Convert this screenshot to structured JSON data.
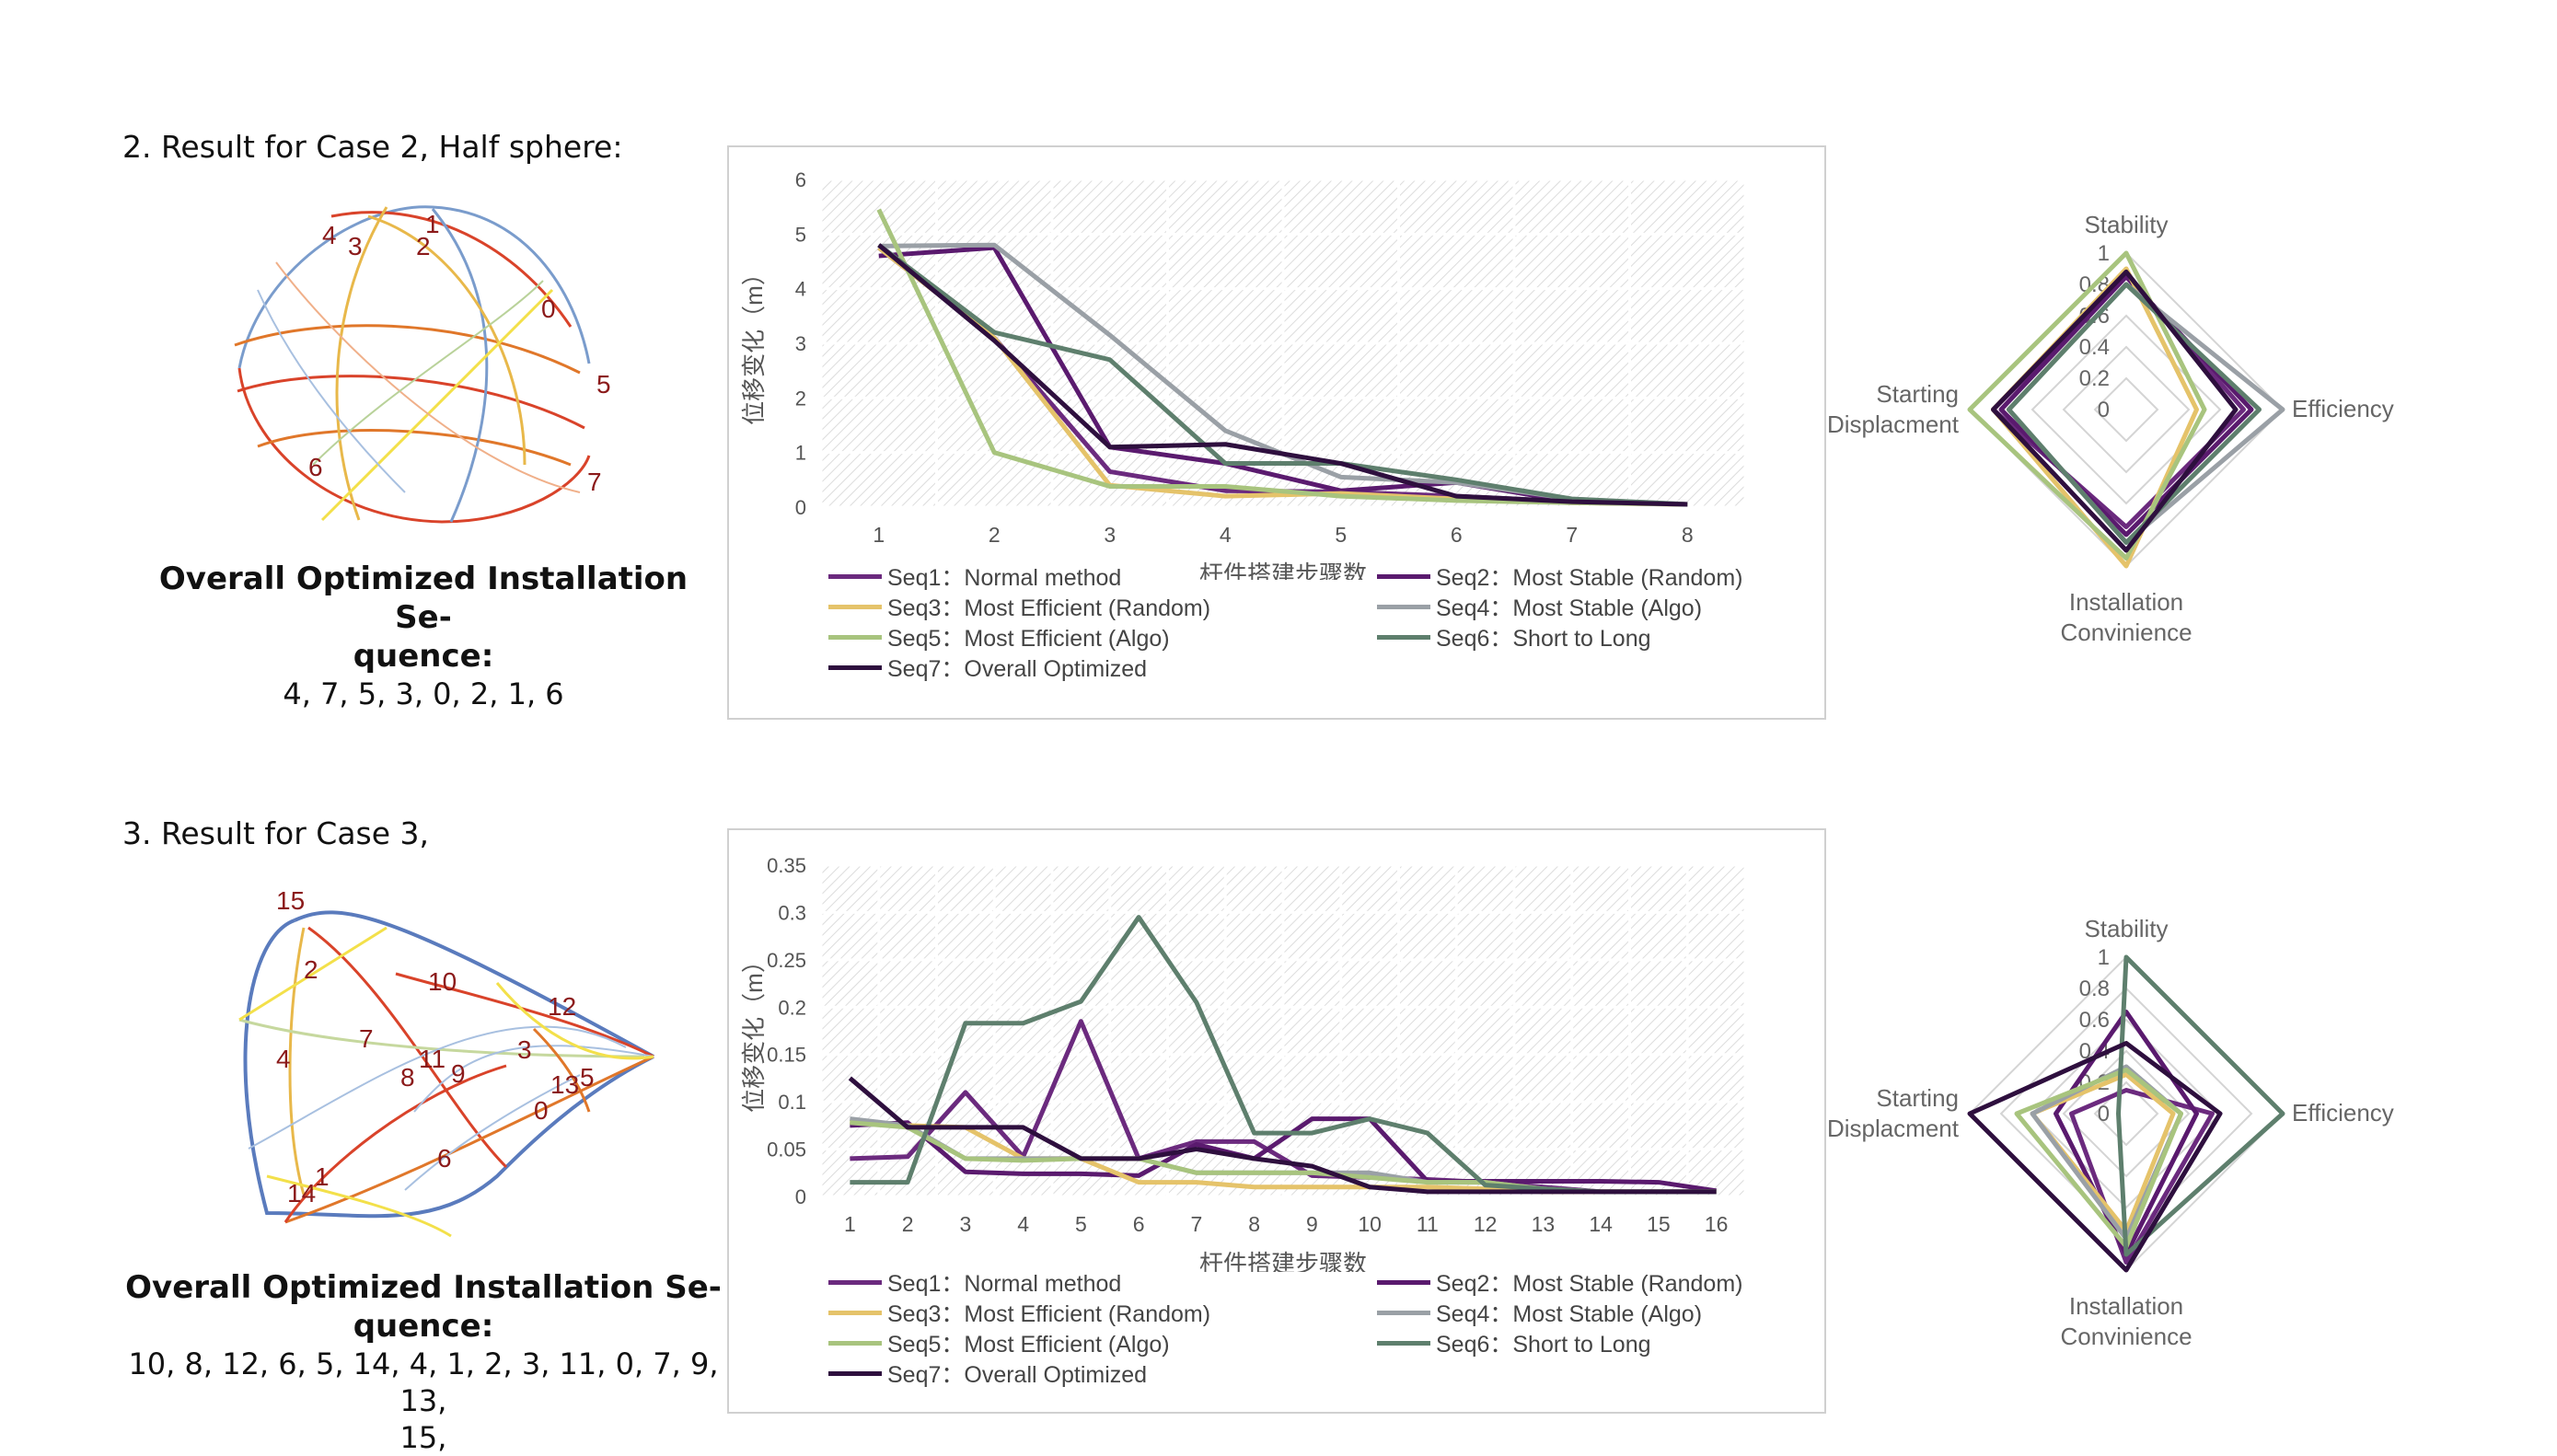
{
  "sections": [
    {
      "title": "2. Result for Case 2,  Half sphere:",
      "sequence_heading": "Overall Optimized Installation Se-\nquence:",
      "sequence_values": "4, 7, 5, 3, 0, 2, 1, 6",
      "model_labels": [
        "1",
        "4",
        "3",
        "2",
        "0",
        "5",
        "6",
        "7"
      ]
    },
    {
      "title": "3. Result for Case 3,",
      "sequence_heading": "Overall Optimized Installation Se-\nquence:",
      "sequence_values": "10, 8, 12, 6, 5, 14, 4, 1, 2, 3, 11, 0, 7, 9, 13,\n15,",
      "model_labels": [
        "15",
        "2",
        "10",
        "12",
        "7",
        "4",
        "11",
        "8",
        "9",
        "3",
        "13",
        "5",
        "0",
        "6",
        "14",
        "1"
      ]
    }
  ],
  "colors": {
    "Seq1": "#6b2a7e",
    "Seq2": "#5a1a6e",
    "Seq3": "#e5c36a",
    "Seq4": "#9aa0a6",
    "Seq5": "#a8c47e",
    "Seq6": "#5e7f6d",
    "Seq7": "#2e0f3e"
  },
  "chart_data": [
    {
      "type": "line",
      "xlabel": "杆件搭建步骤数",
      "ylabel": "位移变化（m）",
      "x": [
        1,
        2,
        3,
        4,
        5,
        6,
        7,
        8
      ],
      "ylim": [
        0,
        6
      ],
      "yticks": [
        "0",
        "1",
        "2",
        "3",
        "4",
        "5",
        "6"
      ],
      "grid": true,
      "legend_position": "bottom",
      "series": [
        {
          "name": "Seq1：Normal method",
          "key": "Seq1",
          "values": [
            4.75,
            3.1,
            0.65,
            0.3,
            0.28,
            0.2,
            0.1,
            0.05
          ]
        },
        {
          "name": "Seq2：Most Stable (Random)",
          "key": "Seq2",
          "values": [
            4.6,
            4.75,
            1.1,
            0.8,
            0.3,
            0.45,
            0.1,
            0.05
          ]
        },
        {
          "name": "Seq3：Most Efficient (Random)",
          "key": "Seq3",
          "values": [
            4.75,
            3.1,
            0.4,
            0.2,
            0.25,
            0.15,
            0.08,
            0.05
          ]
        },
        {
          "name": "Seq4：Most Stable (Algo)",
          "key": "Seq4",
          "values": [
            4.78,
            4.8,
            3.15,
            1.4,
            0.55,
            0.45,
            0.15,
            0.05
          ]
        },
        {
          "name": "Seq5：Most Efficient (Algo)",
          "key": "Seq5",
          "values": [
            5.45,
            1.0,
            0.38,
            0.38,
            0.2,
            0.12,
            0.08,
            0.05
          ]
        },
        {
          "name": "Seq6：Short to Long",
          "key": "Seq6",
          "values": [
            4.8,
            3.2,
            2.7,
            0.8,
            0.8,
            0.5,
            0.15,
            0.05
          ]
        },
        {
          "name": "Seq7：Overall Optimized",
          "key": "Seq7",
          "values": [
            4.8,
            3.05,
            1.1,
            1.15,
            0.8,
            0.2,
            0.1,
            0.05
          ]
        }
      ]
    },
    {
      "type": "line",
      "xlabel": "杆件搭建步骤数",
      "ylabel": "位移变化（m）",
      "x": [
        1,
        2,
        3,
        4,
        5,
        6,
        7,
        8,
        9,
        10,
        11,
        12,
        13,
        14,
        15,
        16
      ],
      "ylim": [
        0,
        0.35
      ],
      "yticks": [
        "0",
        "0.05",
        "0.1",
        "0.15",
        "0.2",
        "0.25",
        "0.3",
        "0.35"
      ],
      "grid": true,
      "legend_position": "bottom",
      "series": [
        {
          "name": "Seq1：Normal method",
          "key": "Seq1",
          "values": [
            0.04,
            0.042,
            0.11,
            0.042,
            0.185,
            0.04,
            0.058,
            0.058,
            0.022,
            0.02,
            0.018,
            0.015,
            0.01,
            0.005,
            0.005,
            0.005
          ]
        },
        {
          "name": "Seq2：Most Stable (Random)",
          "key": "Seq2",
          "values": [
            0.075,
            0.078,
            0.026,
            0.024,
            0.024,
            0.022,
            0.055,
            0.04,
            0.082,
            0.082,
            0.016,
            0.016,
            0.016,
            0.016,
            0.015,
            0.006
          ]
        },
        {
          "name": "Seq3：Most Efficient (Random)",
          "key": "Seq3",
          "values": [
            0.08,
            0.075,
            0.073,
            0.04,
            0.04,
            0.015,
            0.015,
            0.01,
            0.01,
            0.01,
            0.01,
            0.008,
            0.005,
            0.005,
            0.005,
            0.005
          ]
        },
        {
          "name": "Seq4：Most Stable (Algo)",
          "key": "Seq4",
          "values": [
            0.082,
            0.075,
            0.04,
            0.04,
            0.04,
            0.04,
            0.025,
            0.025,
            0.025,
            0.025,
            0.015,
            0.015,
            0.008,
            0.005,
            0.005,
            0.005
          ]
        },
        {
          "name": "Seq5：Most Efficient (Algo)",
          "key": "Seq5",
          "values": [
            0.078,
            0.073,
            0.04,
            0.038,
            0.04,
            0.04,
            0.025,
            0.025,
            0.025,
            0.02,
            0.015,
            0.015,
            0.008,
            0.005,
            0.005,
            0.005
          ]
        },
        {
          "name": "Seq6：Short to Long",
          "key": "Seq6",
          "values": [
            0.015,
            0.015,
            0.183,
            0.183,
            0.206,
            0.295,
            0.205,
            0.067,
            0.067,
            0.082,
            0.067,
            0.012,
            0.008,
            0.005,
            0.005,
            0.005
          ]
        },
        {
          "name": "Seq7：Overall Optimized",
          "key": "Seq7",
          "values": [
            0.125,
            0.073,
            0.073,
            0.073,
            0.04,
            0.04,
            0.05,
            0.04,
            0.032,
            0.01,
            0.005,
            0.005,
            0.005,
            0.005,
            0.005,
            0.005
          ]
        }
      ]
    },
    {
      "type": "radar",
      "axes": [
        "Stability",
        "Efficiency",
        "Installation\nConvinience",
        "Starting\nDisplacment"
      ],
      "rticks": [
        "0",
        "0.2",
        "0.4",
        "0.6",
        "0.8",
        "1"
      ],
      "rlim": [
        0,
        1
      ],
      "series": [
        {
          "key": "Seq1",
          "values": [
            0.85,
            0.75,
            0.75,
            0.85
          ]
        },
        {
          "key": "Seq2",
          "values": [
            0.85,
            0.8,
            0.8,
            0.8
          ]
        },
        {
          "key": "Seq3",
          "values": [
            0.9,
            0.45,
            1.0,
            0.85
          ]
        },
        {
          "key": "Seq4",
          "values": [
            0.8,
            1.0,
            0.85,
            0.75
          ]
        },
        {
          "key": "Seq5",
          "values": [
            1.0,
            0.5,
            0.95,
            1.0
          ]
        },
        {
          "key": "Seq6",
          "values": [
            0.8,
            0.85,
            0.85,
            0.75
          ]
        },
        {
          "key": "Seq7",
          "values": [
            0.88,
            0.7,
            0.9,
            0.85
          ]
        }
      ]
    },
    {
      "type": "radar",
      "axes": [
        "Stability",
        "Efficiency",
        "Installation\nConvinience",
        "Starting\nDisplacment"
      ],
      "rticks": [
        "0",
        "0.2",
        "0.4",
        "0.6",
        "0.8",
        "1"
      ],
      "rlim": [
        0,
        1
      ],
      "series": [
        {
          "key": "Seq1",
          "values": [
            0.15,
            0.55,
            0.95,
            0.35
          ]
        },
        {
          "key": "Seq2",
          "values": [
            0.65,
            0.45,
            0.9,
            0.45
          ]
        },
        {
          "key": "Seq3",
          "values": [
            0.25,
            0.3,
            0.75,
            0.6
          ]
        },
        {
          "key": "Seq4",
          "values": [
            0.3,
            0.35,
            0.8,
            0.6
          ]
        },
        {
          "key": "Seq5",
          "values": [
            0.28,
            0.35,
            0.85,
            0.7
          ]
        },
        {
          "key": "Seq6",
          "values": [
            1.0,
            1.0,
            0.9,
            0.05
          ]
        },
        {
          "key": "Seq7",
          "values": [
            0.45,
            0.6,
            1.0,
            1.0
          ]
        }
      ]
    }
  ]
}
